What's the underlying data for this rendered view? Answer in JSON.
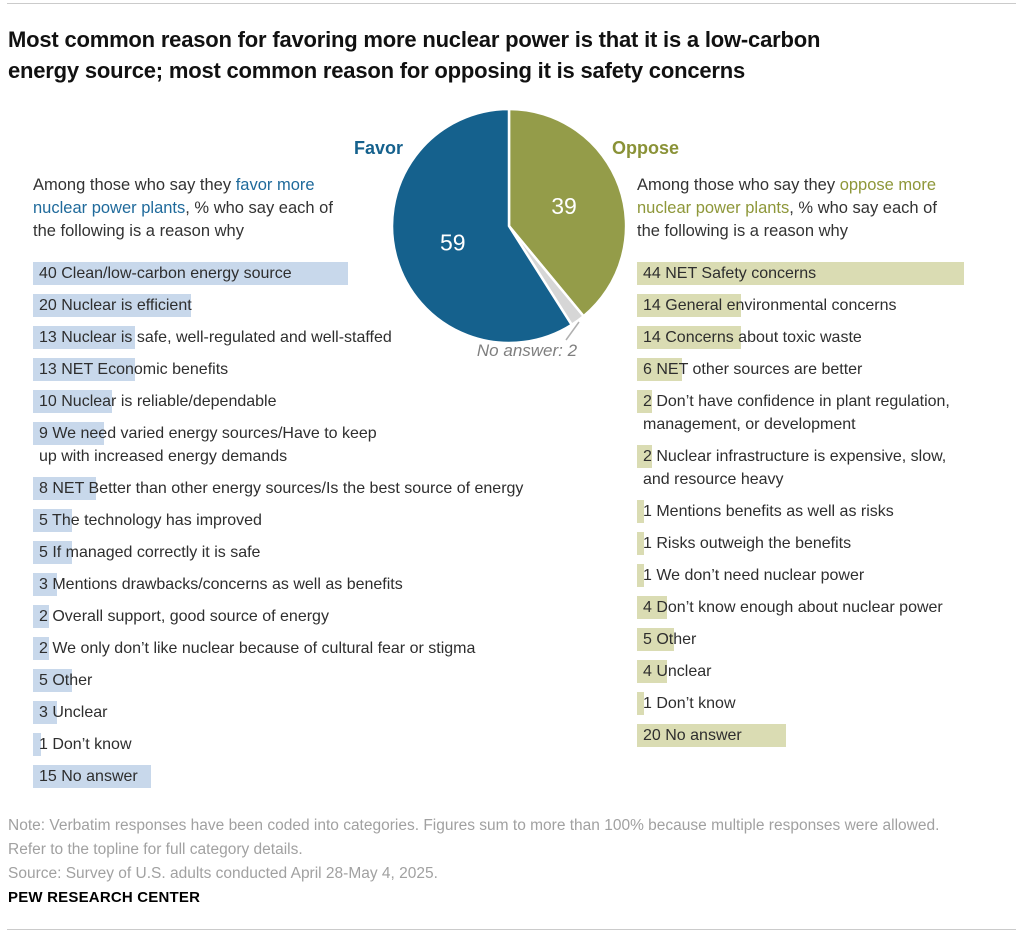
{
  "header": {
    "title_lines": [
      "Most common reason for favoring more nuclear power is that it is a low-carbon",
      "energy source; most common reason for opposing it is safety concerns"
    ]
  },
  "pie": {
    "favor_label": "Favor",
    "oppose_label": "Oppose",
    "annotation": "No answer: 2",
    "slices": [
      {
        "name": "Oppose",
        "value": 39,
        "color": "#949c49",
        "show_value": true
      },
      {
        "name": "No answer",
        "value": 2,
        "color": "#d6d6d6",
        "show_value": false
      },
      {
        "name": "Favor",
        "value": 59,
        "color": "#15618d",
        "show_value": true
      }
    ]
  },
  "favor": {
    "accent": "#1f6a9b",
    "bar_color": "#c8d8eb",
    "intro_lines": [
      [
        [
          "Among those who say they ",
          false
        ],
        [
          "favor more",
          true
        ]
      ],
      [
        [
          "nuclear power plants",
          true
        ],
        [
          ", % who say each of",
          false
        ]
      ],
      [
        [
          "the following is a reason why",
          false
        ]
      ]
    ],
    "items": [
      {
        "value": 40,
        "lines": [
          "Clean/low-carbon energy source"
        ]
      },
      {
        "value": 20,
        "lines": [
          "Nuclear is efficient"
        ]
      },
      {
        "value": 13,
        "lines": [
          "Nuclear is safe, well-regulated and well-staffed"
        ]
      },
      {
        "value": 13,
        "lines": [
          "NET Economic benefits"
        ]
      },
      {
        "value": 10,
        "lines": [
          "Nuclear is reliable/dependable"
        ]
      },
      {
        "value": 9,
        "lines": [
          "We need varied energy sources/Have to keep",
          "up with increased energy demands"
        ]
      },
      {
        "value": 8,
        "lines": [
          "NET Better than other energy sources/Is the best source of energy"
        ]
      },
      {
        "value": 5,
        "lines": [
          "The technology has improved"
        ]
      },
      {
        "value": 5,
        "lines": [
          "If managed correctly it is safe"
        ]
      },
      {
        "value": 3,
        "lines": [
          "Mentions drawbacks/concerns as well as benefits"
        ]
      },
      {
        "value": 2,
        "lines": [
          "Overall support, good source of energy"
        ]
      },
      {
        "value": 2,
        "lines": [
          "We only don’t like nuclear because of cultural fear or stigma"
        ]
      },
      {
        "value": 5,
        "lines": [
          "Other"
        ]
      },
      {
        "value": 3,
        "lines": [
          "Unclear"
        ]
      },
      {
        "value": 1,
        "lines": [
          "Don’t know"
        ]
      },
      {
        "value": 15,
        "lines": [
          "No answer"
        ]
      }
    ]
  },
  "oppose": {
    "accent": "#8e9739",
    "bar_color": "#dadcb3",
    "intro_lines": [
      [
        [
          "Among those who say they ",
          false
        ],
        [
          "oppose more",
          true
        ]
      ],
      [
        [
          "nuclear power plants",
          true
        ],
        [
          ", % who say each of",
          false
        ]
      ],
      [
        [
          "the following is a reason why",
          false
        ]
      ]
    ],
    "items": [
      {
        "value": 44,
        "lines": [
          "NET Safety concerns"
        ]
      },
      {
        "value": 14,
        "lines": [
          "General environmental concerns"
        ]
      },
      {
        "value": 14,
        "lines": [
          "Concerns about toxic waste"
        ]
      },
      {
        "value": 6,
        "lines": [
          "NET other sources are better"
        ]
      },
      {
        "value": 2,
        "lines": [
          "Don’t have confidence in plant regulation,",
          "management, or development"
        ]
      },
      {
        "value": 2,
        "lines": [
          "Nuclear infrastructure is expensive, slow,",
          "and resource heavy"
        ]
      },
      {
        "value": 1,
        "lines": [
          "Mentions benefits as well as risks"
        ]
      },
      {
        "value": 1,
        "lines": [
          "Risks outweigh the benefits"
        ]
      },
      {
        "value": 1,
        "lines": [
          "We don’t need nuclear power"
        ]
      },
      {
        "value": 4,
        "lines": [
          "Don’t know enough about nuclear power"
        ]
      },
      {
        "value": 5,
        "lines": [
          "Other"
        ]
      },
      {
        "value": 4,
        "lines": [
          "Unclear"
        ]
      },
      {
        "value": 1,
        "lines": [
          "Don’t know"
        ]
      },
      {
        "value": 20,
        "lines": [
          "No answer"
        ]
      }
    ]
  },
  "footer": {
    "note_lines": [
      "Note: Verbatim responses have been coded into categories. Figures sum to more than 100% because multiple responses were allowed.",
      "Refer to the topline for full category details.",
      "Source: Survey of U.S. adults conducted April 28-May 4, 2025."
    ],
    "brand": "PEW RESEARCH CENTER"
  },
  "chart_data": [
    {
      "type": "pie",
      "title": "Favor vs oppose more nuclear power plants (% of U.S. adults)",
      "slices": [
        {
          "label": "Favor",
          "value": 59,
          "color": "#15618d"
        },
        {
          "label": "Oppose",
          "value": 39,
          "color": "#949c49"
        },
        {
          "label": "No answer",
          "value": 2,
          "color": "#d6d6d6"
        }
      ],
      "annotation": "No answer: 2",
      "order_clockwise_from_top": [
        "Oppose",
        "No answer",
        "Favor"
      ],
      "legend_position": "none"
    },
    {
      "type": "bar",
      "title": "Among those who say they favor more nuclear power plants, % who say each of the following is a reason why",
      "categories": [
        "Clean/low-carbon energy source",
        "Nuclear is efficient",
        "Nuclear is safe, well-regulated and well-staffed",
        "NET Economic benefits",
        "Nuclear is reliable/dependable",
        "We need varied energy sources/Have to keep up with increased energy demands",
        "NET Better than other energy sources/Is the best source of energy",
        "The technology has improved",
        "If managed correctly it is safe",
        "Mentions drawbacks/concerns as well as benefits",
        "Overall support, good source of energy",
        "We only don’t like nuclear because of cultural fear or stigma",
        "Other",
        "Unclear",
        "Don’t know",
        "No answer"
      ],
      "values": [
        40,
        20,
        13,
        13,
        10,
        9,
        8,
        5,
        5,
        3,
        2,
        2,
        5,
        3,
        1,
        15
      ],
      "xlabel": "",
      "ylabel": "",
      "xlim": [
        0,
        44
      ],
      "grid": false
    },
    {
      "type": "bar",
      "title": "Among those who say they oppose more nuclear power plants, % who say each of the following is a reason why",
      "categories": [
        "NET Safety concerns",
        "General environmental concerns",
        "Concerns about toxic waste",
        "NET other sources are better",
        "Don’t have confidence in plant regulation, management, or development",
        "Nuclear infrastructure is expensive, slow, and resource heavy",
        "Mentions benefits as well as risks",
        "Risks outweigh the benefits",
        "We don’t need nuclear power",
        "Don’t know enough about nuclear power",
        "Other",
        "Unclear",
        "Don’t know",
        "No answer"
      ],
      "values": [
        44,
        14,
        14,
        6,
        2,
        2,
        1,
        1,
        1,
        4,
        5,
        4,
        1,
        20
      ],
      "xlabel": "",
      "ylabel": "",
      "xlim": [
        0,
        44
      ],
      "grid": false
    }
  ]
}
